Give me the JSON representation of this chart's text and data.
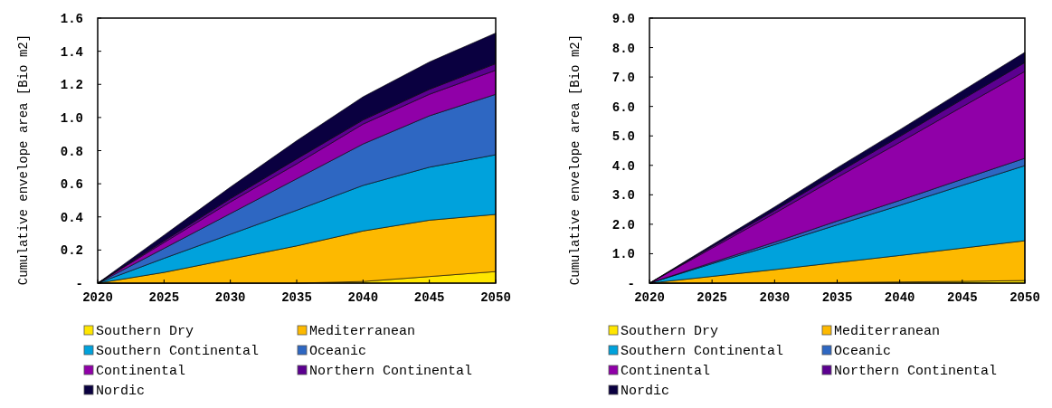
{
  "chart_data": [
    {
      "type": "area",
      "stacked": true,
      "ylabel": "Cumulative envelope area [Bio m2]",
      "x": [
        2020,
        2025,
        2030,
        2035,
        2040,
        2045,
        2050
      ],
      "xlim": [
        2020,
        2050
      ],
      "xticks": [
        2020,
        2025,
        2030,
        2035,
        2040,
        2045,
        2050
      ],
      "ylim": [
        0,
        1.6
      ],
      "yticks": [
        {
          "value": 0,
          "label": "-"
        },
        0.2,
        0.4,
        0.6,
        0.8,
        {
          "value": 1,
          "label": "1.0"
        },
        1.2,
        1.4,
        1.6
      ],
      "legend": "bottom",
      "series": [
        {
          "name": "Southern Dry",
          "color": "#ffe600",
          "values": [
            0,
            0,
            0,
            0,
            0.01,
            0.04,
            0.07
          ]
        },
        {
          "name": "Mediterranean",
          "color": "#fdb900",
          "values": [
            0,
            0.065,
            0.145,
            0.225,
            0.305,
            0.34,
            0.345
          ]
        },
        {
          "name": "Southern Continental",
          "color": "#00a2dc",
          "values": [
            0,
            0.085,
            0.15,
            0.215,
            0.275,
            0.32,
            0.36
          ]
        },
        {
          "name": "Oceanic",
          "color": "#2e67c2",
          "values": [
            0,
            0.06,
            0.125,
            0.19,
            0.25,
            0.31,
            0.365
          ]
        },
        {
          "name": "Continental",
          "color": "#9000a8",
          "values": [
            0,
            0.035,
            0.07,
            0.09,
            0.12,
            0.13,
            0.145
          ]
        },
        {
          "name": "Northern Continental",
          "color": "#5c0090",
          "values": [
            0,
            0.01,
            0.02,
            0.03,
            0.025,
            0.03,
            0.04
          ]
        },
        {
          "name": "Nordic",
          "color": "#0a0040",
          "values": [
            0,
            0.035,
            0.07,
            0.11,
            0.14,
            0.165,
            0.185
          ]
        }
      ]
    },
    {
      "type": "area",
      "stacked": true,
      "ylabel": "Cumulative envelope area [Bio m2]",
      "x": [
        2020,
        2025,
        2030,
        2035,
        2040,
        2045,
        2050
      ],
      "xlim": [
        2020,
        2050
      ],
      "xticks": [
        2020,
        2025,
        2030,
        2035,
        2040,
        2045,
        2050
      ],
      "ylim": [
        0,
        9
      ],
      "yticks": [
        {
          "value": 0,
          "label": "-"
        },
        {
          "value": 1,
          "label": "1.0"
        },
        {
          "value": 2,
          "label": "2.0"
        },
        {
          "value": 3,
          "label": "3.0"
        },
        {
          "value": 4,
          "label": "4.0"
        },
        {
          "value": 5,
          "label": "5.0"
        },
        {
          "value": 6,
          "label": "6.0"
        },
        {
          "value": 7,
          "label": "7.0"
        },
        {
          "value": 8,
          "label": "8.0"
        },
        {
          "value": 9,
          "label": "9.0"
        }
      ],
      "legend": "bottom",
      "series": [
        {
          "name": "Southern Dry",
          "color": "#ffe600",
          "values": [
            0,
            0,
            0.01,
            0.02,
            0.04,
            0.06,
            0.09
          ]
        },
        {
          "name": "Mediterranean",
          "color": "#fdb900",
          "values": [
            0,
            0.23,
            0.45,
            0.68,
            0.9,
            1.13,
            1.35
          ]
        },
        {
          "name": "Southern Continental",
          "color": "#00a2dc",
          "values": [
            0,
            0.43,
            0.85,
            1.28,
            1.7,
            2.13,
            2.55
          ]
        },
        {
          "name": "Oceanic",
          "color": "#2e67c2",
          "values": [
            0,
            0.04,
            0.08,
            0.13,
            0.17,
            0.21,
            0.25
          ]
        },
        {
          "name": "Continental",
          "color": "#9000a8",
          "values": [
            0,
            0.49,
            0.98,
            1.48,
            1.97,
            2.46,
            2.95
          ]
        },
        {
          "name": "Northern Continental",
          "color": "#5c0090",
          "values": [
            0,
            0.05,
            0.1,
            0.15,
            0.2,
            0.25,
            0.3
          ]
        },
        {
          "name": "Nordic",
          "color": "#0a0040",
          "values": [
            0,
            0.06,
            0.12,
            0.18,
            0.23,
            0.29,
            0.35
          ]
        }
      ]
    }
  ]
}
